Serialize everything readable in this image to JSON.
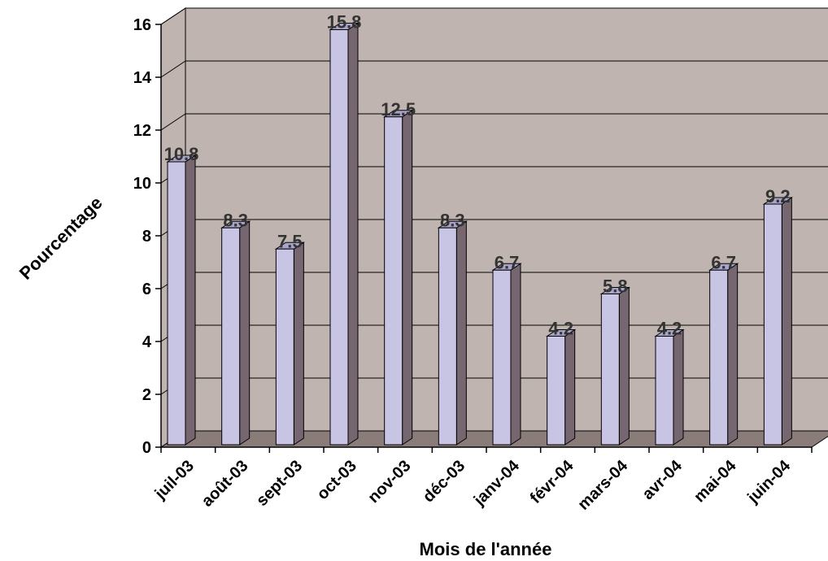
{
  "chart_data": {
    "type": "bar",
    "title": "",
    "xlabel": "Mois de l'année",
    "ylabel": "Pourcentage",
    "categories": [
      "juil-03",
      "août-03",
      "sept-03",
      "oct-03",
      "nov-03",
      "déc-03",
      "janv-04",
      "févr-04",
      "mars-04",
      "avr-04",
      "mai-04",
      "juin-04"
    ],
    "values": [
      10.8,
      8.3,
      7.5,
      15.8,
      12.5,
      8.3,
      6.7,
      4.2,
      5.8,
      4.2,
      6.7,
      9.2
    ],
    "value_labels": [
      "10.8",
      "8.3",
      "7.5",
      "15.8",
      "12.5",
      "8.3",
      "6.7",
      "4.2",
      "5.8",
      "4.2",
      "6.7",
      "9.2"
    ],
    "ylim": [
      0,
      16
    ],
    "yticks": [
      "0",
      "2",
      "4",
      "6",
      "8",
      "10",
      "12",
      "14",
      "16"
    ],
    "grid": true,
    "style": "3d",
    "colors": {
      "bar_front": "#c8c4e4",
      "bar_side": "#766670",
      "bar_top": "#a8a4c8",
      "wall": "#c0b4b0",
      "floor": "#8a7c78",
      "gridline": "#000000"
    }
  }
}
